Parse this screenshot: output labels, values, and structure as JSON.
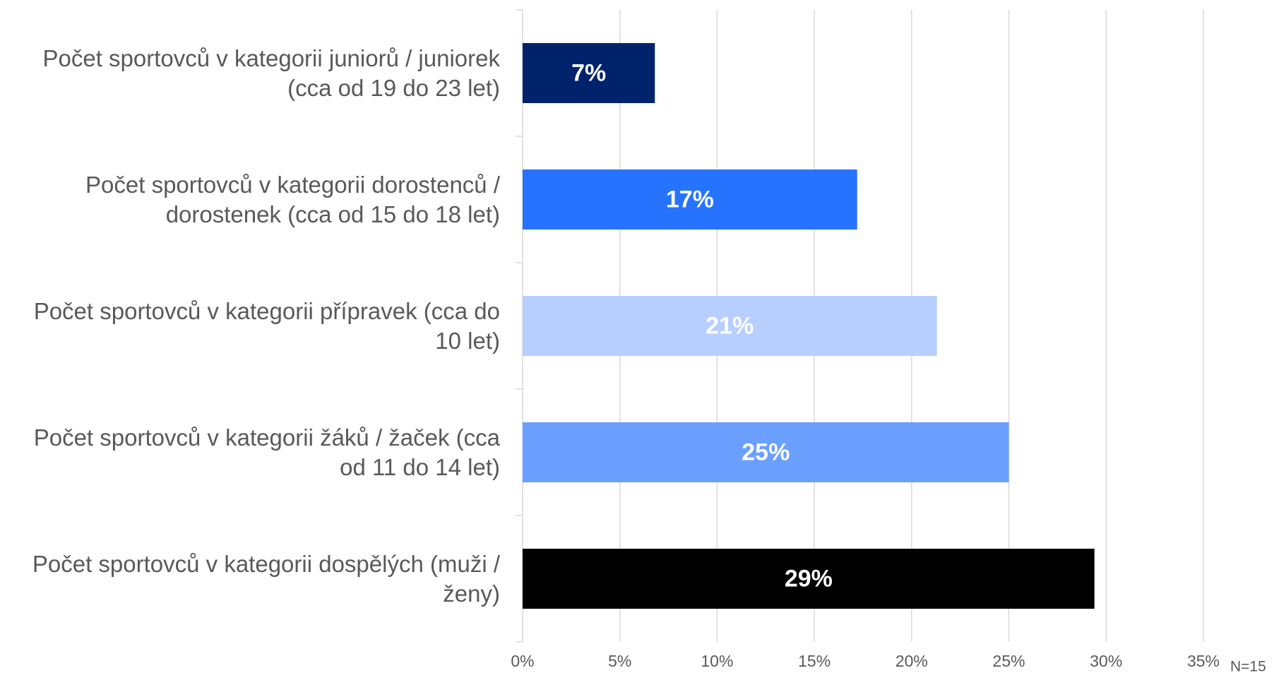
{
  "chart_data": {
    "type": "hbar",
    "categories": [
      "Počet sportovců v kategorii juniorů / juniorek (cca od 19 do 23 let)",
      "Počet sportovců v kategorii dorostenců / dorostenek (cca od 15 do 18 let)",
      "Počet sportovců v kategorii přípravek (cca do 10 let)",
      "Počet sportovců v kategorii žáků / žaček (cca od 11 do 14 let)",
      "Počet sportovců v kategorii dospělých (muži / ženy)"
    ],
    "values": [
      6.8,
      17.2,
      21.3,
      25.0,
      29.4
    ],
    "value_labels": [
      "7%",
      "17%",
      "21%",
      "25%",
      "29%"
    ],
    "colors": [
      "#00236b",
      "#2673ff",
      "#b7cfff",
      "#6b9fff",
      "#000000"
    ],
    "xlim": [
      0,
      35
    ],
    "xticks": [
      {
        "value": 0,
        "label": "0%"
      },
      {
        "value": 5,
        "label": "5%"
      },
      {
        "value": 10,
        "label": "10%"
      },
      {
        "value": 15,
        "label": "15%"
      },
      {
        "value": 20,
        "label": "20%"
      },
      {
        "value": 25,
        "label": "25%"
      },
      {
        "value": 30,
        "label": "30%"
      },
      {
        "value": 35,
        "label": "35%"
      }
    ],
    "grid": true,
    "annotation": "N=15"
  }
}
